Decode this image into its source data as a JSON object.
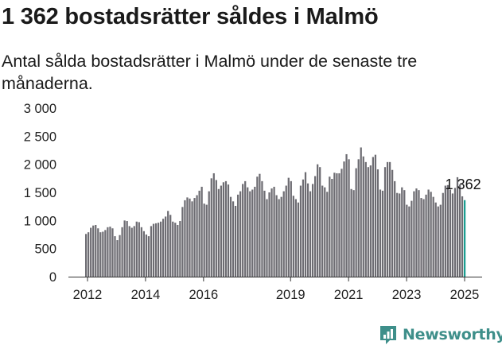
{
  "title": "1 362 bostadsrätter såldes i Malmö",
  "subtitle": "Antal sålda bostadsrätter i Malmö under de senaste tre månaderna.",
  "brand": {
    "name": "Newsworthy",
    "icon": "newsworthy-logo-icon"
  },
  "colors": {
    "bar": "#6d6c72",
    "highlight": "#1a9e90",
    "axis": "#333333",
    "text": "#222222",
    "brand": "#3e8f8a"
  },
  "chart_data": {
    "type": "bar",
    "title": "",
    "xlabel": "",
    "ylabel": "",
    "ylim": [
      0,
      3000
    ],
    "y_ticks": [
      "0",
      "500",
      "1 000",
      "1 500",
      "2 000",
      "2 500",
      "3 000"
    ],
    "y_tick_values": [
      0,
      500,
      1000,
      1500,
      2000,
      2500,
      3000
    ],
    "x_tick_labels": [
      "2012",
      "2014",
      "2016",
      "2019",
      "2021",
      "2023",
      "2025"
    ],
    "x_start": "2012-01",
    "x_end": "2025-01",
    "grid": false,
    "highlight_label": "1 362",
    "values": [
      760,
      790,
      870,
      910,
      920,
      860,
      790,
      800,
      830,
      880,
      890,
      860,
      720,
      650,
      740,
      880,
      1000,
      990,
      900,
      870,
      900,
      980,
      970,
      880,
      810,
      750,
      720,
      900,
      940,
      950,
      960,
      980,
      1030,
      1070,
      1170,
      1100,
      980,
      960,
      920,
      990,
      1240,
      1360,
      1410,
      1390,
      1340,
      1400,
      1450,
      1530,
      1600,
      1300,
      1280,
      1520,
      1750,
      1840,
      1720,
      1560,
      1620,
      1680,
      1700,
      1640,
      1420,
      1340,
      1260,
      1460,
      1520,
      1650,
      1700,
      1590,
      1520,
      1550,
      1600,
      1780,
      1830,
      1700,
      1530,
      1380,
      1500,
      1570,
      1600,
      1450,
      1380,
      1420,
      1520,
      1620,
      1760,
      1700,
      1440,
      1380,
      1320,
      1620,
      1730,
      1860,
      1660,
      1520,
      1650,
      1790,
      2000,
      1950,
      1620,
      1590,
      1510,
      1780,
      1740,
      1850,
      1840,
      1840,
      1920,
      2050,
      2180,
      2090,
      1560,
      1540,
      1930,
      2090,
      2300,
      2140,
      2040,
      1950,
      1980,
      2130,
      2170,
      1910,
      1550,
      1530,
      1950,
      2040,
      2040,
      1900,
      1700,
      1490,
      1480,
      1590,
      1540,
      1280,
      1250,
      1350,
      1520,
      1570,
      1540,
      1400,
      1380,
      1460,
      1550,
      1510,
      1420,
      1320,
      1250,
      1280,
      1490,
      1620,
      1630,
      1550,
      1480,
      1580,
      1770,
      1640,
      1430,
      1362
    ]
  }
}
